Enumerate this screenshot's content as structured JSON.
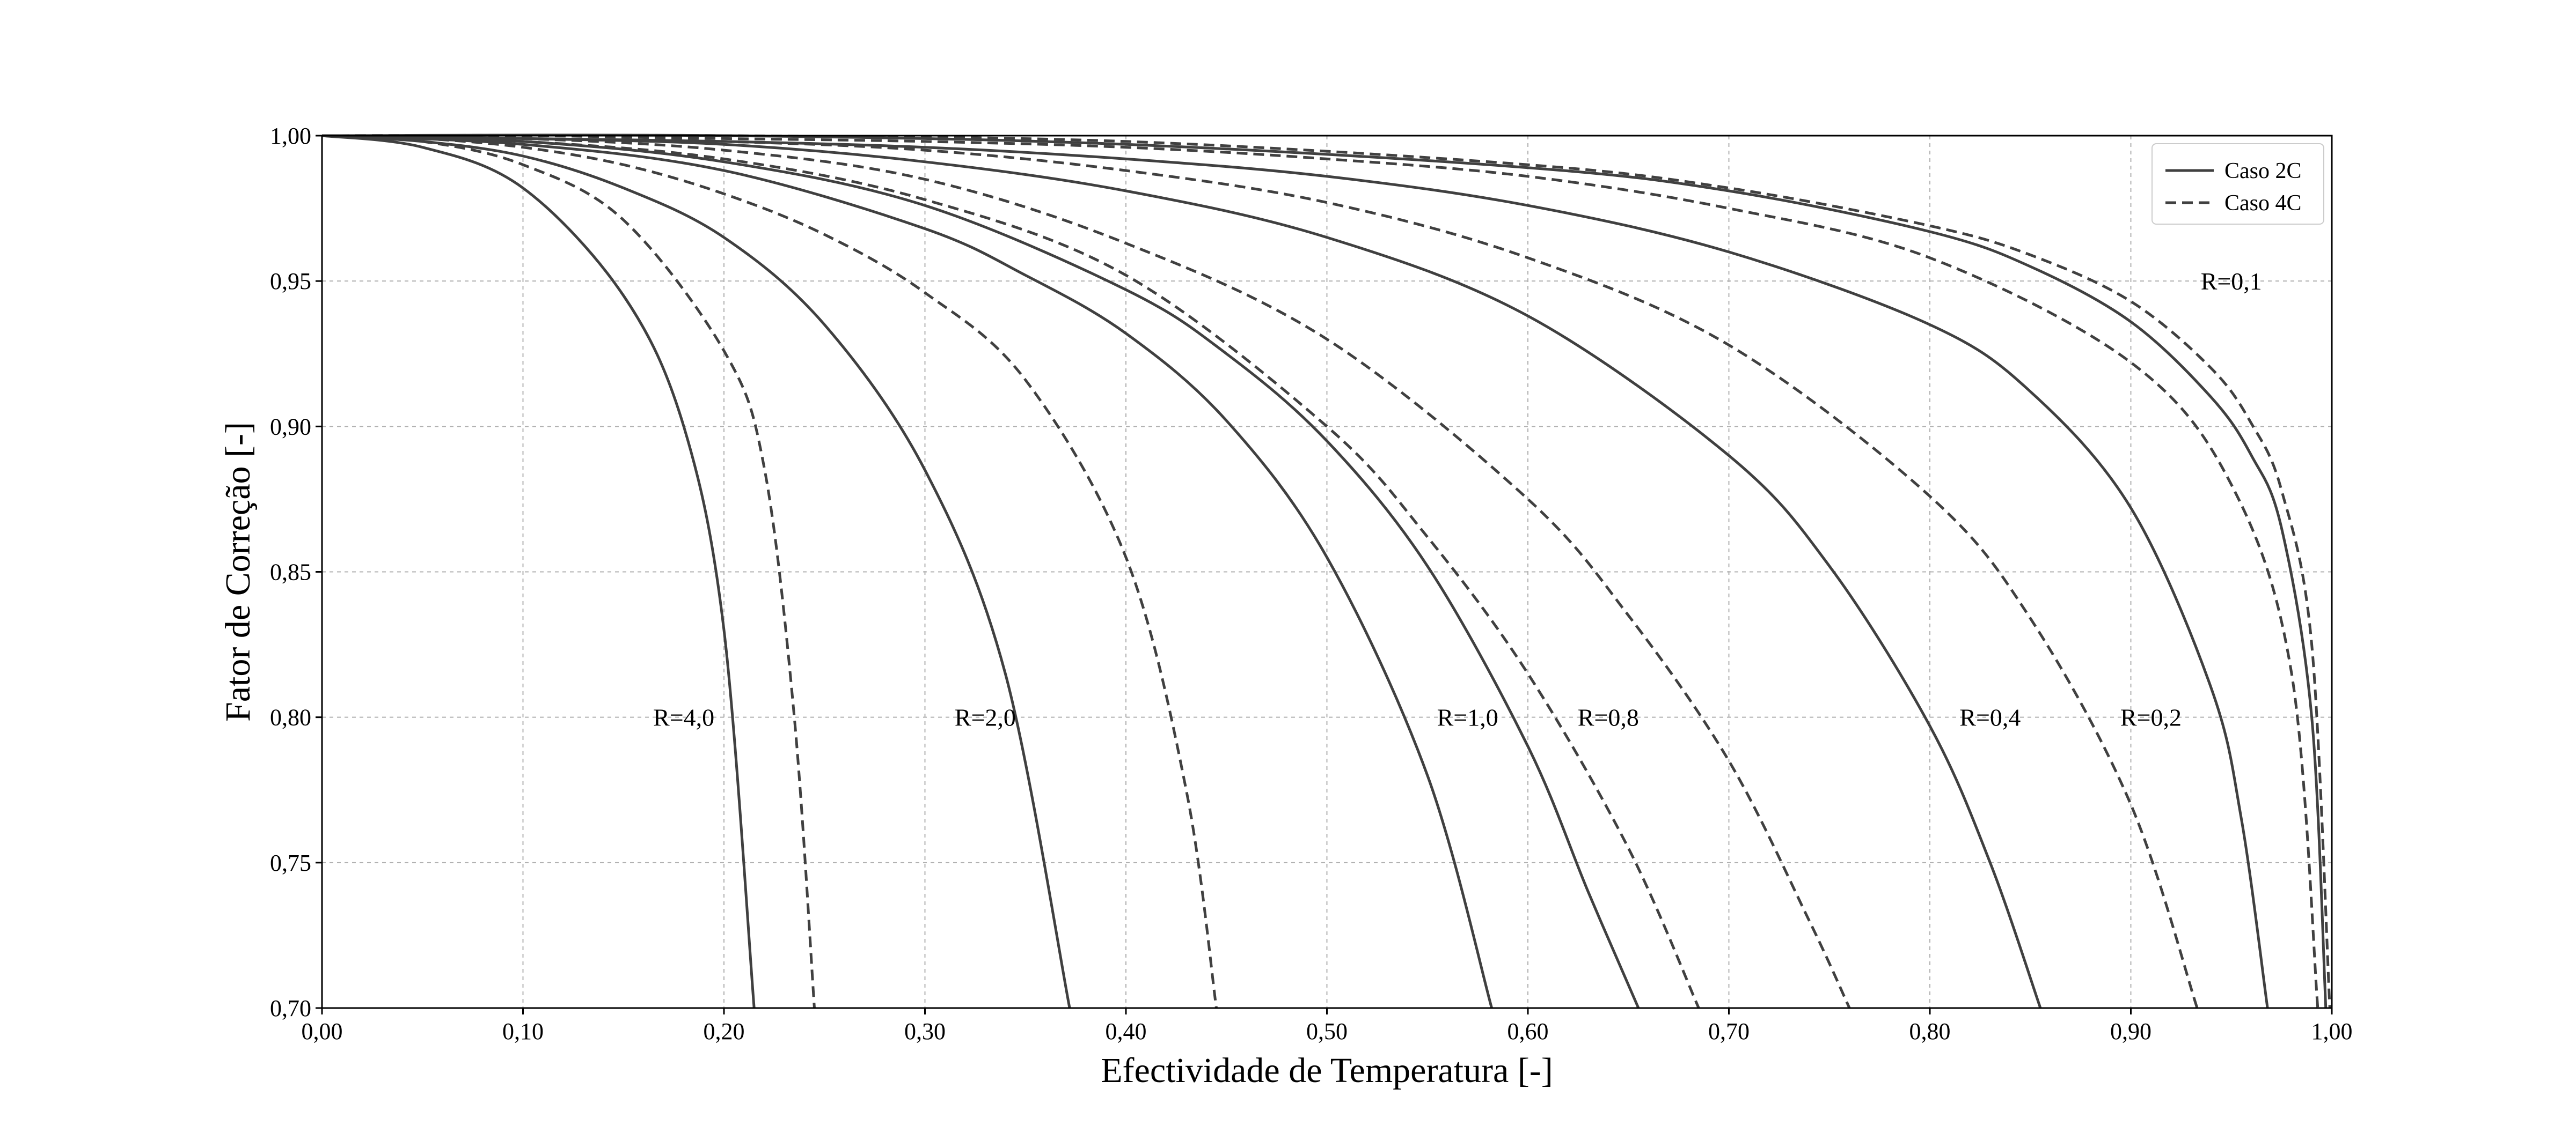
{
  "chart_data": {
    "type": "line",
    "title": "",
    "xlabel": "Efectividade de Temperatura [-]",
    "ylabel": "Fator de Correção [-]",
    "xlim": [
      0.0,
      1.0
    ],
    "ylim": [
      0.7,
      1.0
    ],
    "xticks": [
      0.0,
      0.1,
      0.2,
      0.3,
      0.4,
      0.5,
      0.6,
      0.7,
      0.8,
      0.9,
      1.0
    ],
    "xtick_labels": [
      "0,00",
      "0,10",
      "0,20",
      "0,30",
      "0,40",
      "0,50",
      "0,60",
      "0,70",
      "0,80",
      "0,90",
      "1,00"
    ],
    "yticks": [
      0.7,
      0.75,
      0.8,
      0.85,
      0.9,
      0.95,
      1.0
    ],
    "ytick_labels": [
      "0,70",
      "0,75",
      "0,80",
      "0,85",
      "0,90",
      "0,95",
      "1,00"
    ],
    "grid": true,
    "legend": {
      "position": "top-right",
      "entries": [
        {
          "label": "Caso 2C",
          "style": "solid"
        },
        {
          "label": "Caso 4C",
          "style": "dashed"
        }
      ]
    },
    "line_color": "#404040",
    "grid_color": "#b0b0b0",
    "series": [
      {
        "case": "2C",
        "style": "solid",
        "x": [
          0.0,
          0.05,
          0.1,
          0.15,
          0.18,
          0.2,
          0.215
        ],
        "y": [
          1.0,
          0.996,
          0.982,
          0.945,
          0.9,
          0.83,
          0.7
        ]
      },
      {
        "case": "4C",
        "style": "dashed",
        "x": [
          0.0,
          0.05,
          0.1,
          0.15,
          0.2,
          0.22,
          0.235,
          0.245
        ],
        "y": [
          1.0,
          0.998,
          0.99,
          0.971,
          0.926,
          0.886,
          0.8,
          0.7
        ]
      },
      {
        "case": "2C",
        "style": "solid",
        "x": [
          0.0,
          0.05,
          0.1,
          0.15,
          0.2,
          0.25,
          0.3,
          0.34,
          0.372
        ],
        "y": [
          1.0,
          0.998,
          0.993,
          0.982,
          0.965,
          0.935,
          0.885,
          0.815,
          0.7
        ]
      },
      {
        "case": "4C",
        "style": "dashed",
        "x": [
          0.0,
          0.05,
          0.1,
          0.15,
          0.2,
          0.25,
          0.3,
          0.35,
          0.4,
          0.43,
          0.445
        ],
        "y": [
          1.0,
          0.999,
          0.996,
          0.99,
          0.98,
          0.966,
          0.946,
          0.916,
          0.855,
          0.775,
          0.7
        ]
      },
      {
        "case": "2C",
        "style": "solid",
        "x": [
          0.0,
          0.1,
          0.2,
          0.3,
          0.35,
          0.4,
          0.45,
          0.5,
          0.55,
          0.582
        ],
        "y": [
          1.0,
          0.997,
          0.988,
          0.968,
          0.952,
          0.932,
          0.902,
          0.855,
          0.78,
          0.7
        ]
      },
      {
        "case": "4C",
        "style": "dashed",
        "x": [
          0.0,
          0.1,
          0.2,
          0.3,
          0.4,
          0.5,
          0.55,
          0.6,
          0.65,
          0.685
        ],
        "y": [
          1.0,
          0.998,
          0.992,
          0.978,
          0.952,
          0.9,
          0.862,
          0.815,
          0.755,
          0.7
        ]
      },
      {
        "case": "2C",
        "style": "solid",
        "x": [
          0.0,
          0.1,
          0.2,
          0.3,
          0.4,
          0.45,
          0.5,
          0.55,
          0.6,
          0.63,
          0.655
        ],
        "y": [
          1.0,
          0.998,
          0.991,
          0.976,
          0.947,
          0.925,
          0.895,
          0.852,
          0.79,
          0.74,
          0.7
        ]
      },
      {
        "case": "4C",
        "style": "dashed",
        "x": [
          0.0,
          0.1,
          0.2,
          0.3,
          0.4,
          0.5,
          0.6,
          0.65,
          0.7,
          0.74,
          0.76
        ],
        "y": [
          1.0,
          0.999,
          0.995,
          0.985,
          0.963,
          0.93,
          0.875,
          0.835,
          0.785,
          0.73,
          0.7
        ]
      },
      {
        "case": "2C",
        "style": "solid",
        "x": [
          0.0,
          0.1,
          0.2,
          0.3,
          0.4,
          0.5,
          0.6,
          0.7,
          0.75,
          0.8,
          0.83,
          0.855
        ],
        "y": [
          1.0,
          0.999,
          0.997,
          0.991,
          0.981,
          0.965,
          0.938,
          0.89,
          0.852,
          0.797,
          0.75,
          0.7
        ]
      },
      {
        "case": "4C",
        "style": "dashed",
        "x": [
          0.0,
          0.1,
          0.2,
          0.3,
          0.4,
          0.5,
          0.6,
          0.7,
          0.8,
          0.85,
          0.9,
          0.933
        ],
        "y": [
          1.0,
          0.999,
          0.998,
          0.995,
          0.988,
          0.977,
          0.958,
          0.928,
          0.876,
          0.834,
          0.77,
          0.7
        ]
      },
      {
        "case": "2C",
        "style": "solid",
        "x": [
          0.0,
          0.1,
          0.2,
          0.3,
          0.4,
          0.5,
          0.6,
          0.7,
          0.8,
          0.85,
          0.9,
          0.94,
          0.955,
          0.968
        ],
        "y": [
          1.0,
          0.999,
          0.998,
          0.996,
          0.992,
          0.986,
          0.976,
          0.96,
          0.935,
          0.912,
          0.872,
          0.81,
          0.765,
          0.7
        ]
      },
      {
        "case": "4C",
        "style": "dashed",
        "x": [
          0.0,
          0.1,
          0.2,
          0.3,
          0.4,
          0.5,
          0.6,
          0.7,
          0.8,
          0.9,
          0.95,
          0.98,
          0.993
        ],
        "y": [
          1.0,
          1.0,
          0.999,
          0.998,
          0.996,
          0.992,
          0.986,
          0.975,
          0.958,
          0.922,
          0.88,
          0.815,
          0.7
        ]
      },
      {
        "case": "2C",
        "style": "solid",
        "x": [
          0.0,
          0.2,
          0.4,
          0.6,
          0.7,
          0.8,
          0.85,
          0.9,
          0.94,
          0.96,
          0.975,
          0.99,
          0.997
        ],
        "y": [
          1.0,
          1.0,
          0.997,
          0.989,
          0.981,
          0.967,
          0.955,
          0.936,
          0.91,
          0.89,
          0.865,
          0.8,
          0.7
        ]
      },
      {
        "case": "4C",
        "style": "dashed",
        "x": [
          0.0,
          0.2,
          0.4,
          0.6,
          0.7,
          0.8,
          0.85,
          0.9,
          0.94,
          0.96,
          0.975,
          0.99,
          0.999
        ],
        "y": [
          1.0,
          1.0,
          0.998,
          0.99,
          0.982,
          0.969,
          0.959,
          0.943,
          0.92,
          0.901,
          0.878,
          0.825,
          0.7
        ]
      }
    ],
    "annotations": [
      {
        "text": "R=4,0",
        "x": 0.18,
        "y": 0.8
      },
      {
        "text": "R=2,0",
        "x": 0.33,
        "y": 0.8
      },
      {
        "text": "R=1,0",
        "x": 0.57,
        "y": 0.8
      },
      {
        "text": "R=0,8",
        "x": 0.64,
        "y": 0.8
      },
      {
        "text": "R=0,4",
        "x": 0.83,
        "y": 0.8
      },
      {
        "text": "R=0,2",
        "x": 0.91,
        "y": 0.8
      },
      {
        "text": "R=0,1",
        "x": 0.95,
        "y": 0.95
      }
    ]
  }
}
